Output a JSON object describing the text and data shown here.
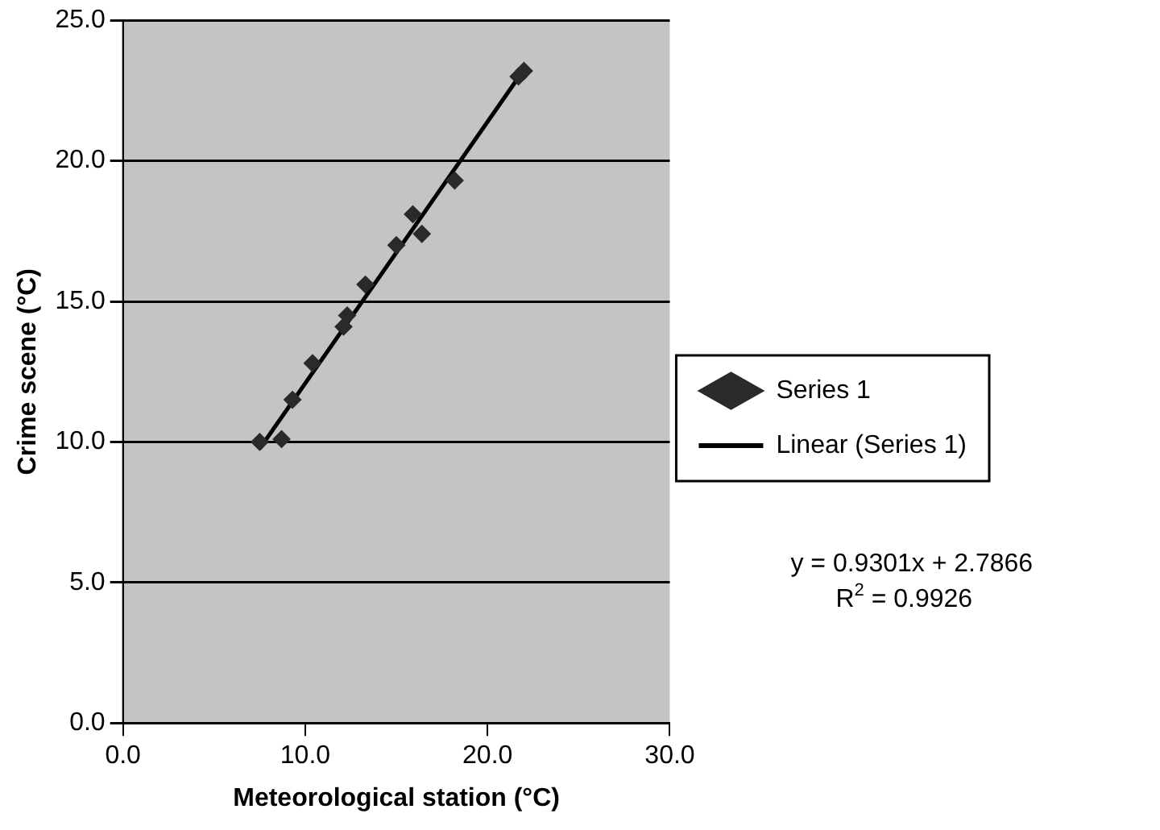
{
  "chart_data": {
    "type": "scatter",
    "xlabel": "Meteorological station (°C)",
    "ylabel": "Crime scene (°C)",
    "xlim": [
      0,
      30
    ],
    "xticks": [
      {
        "value": 0,
        "label": "0.0"
      },
      {
        "value": 10,
        "label": "10.0"
      },
      {
        "value": 20,
        "label": "20.0"
      },
      {
        "value": 30,
        "label": "30.0"
      }
    ],
    "ylim": [
      0,
      25
    ],
    "yticks": [
      {
        "value": 0,
        "label": "0.0"
      },
      {
        "value": 5,
        "label": "5.0"
      },
      {
        "value": 10,
        "label": "10.0"
      },
      {
        "value": 15,
        "label": "15.0"
      },
      {
        "value": 20,
        "label": "20.0"
      },
      {
        "value": 25,
        "label": "25.0"
      }
    ],
    "grid": "y",
    "legend": "right",
    "marker": "diamond",
    "series": [
      {
        "name": "Series 1",
        "type": "scatter",
        "color": "#2a2a2a",
        "x": [
          7.5,
          8.7,
          9.3,
          10.4,
          12.1,
          12.3,
          13.3,
          15.0,
          15.9,
          16.4,
          18.2,
          21.7,
          22.0
        ],
        "values": [
          10.0,
          10.1,
          11.5,
          12.8,
          14.1,
          14.5,
          15.6,
          17.0,
          18.1,
          17.4,
          19.3,
          23.0,
          23.2
        ]
      },
      {
        "name": "Linear (Series 1)",
        "type": "line",
        "color": "#000000",
        "marker": "none",
        "x": [
          7.5,
          22.0
        ],
        "values": [
          9.76,
          23.25
        ]
      }
    ],
    "annotations": [
      "y = 0.9301x + 2.7866",
      "R$^{2}$ = 0.9926"
    ]
  }
}
